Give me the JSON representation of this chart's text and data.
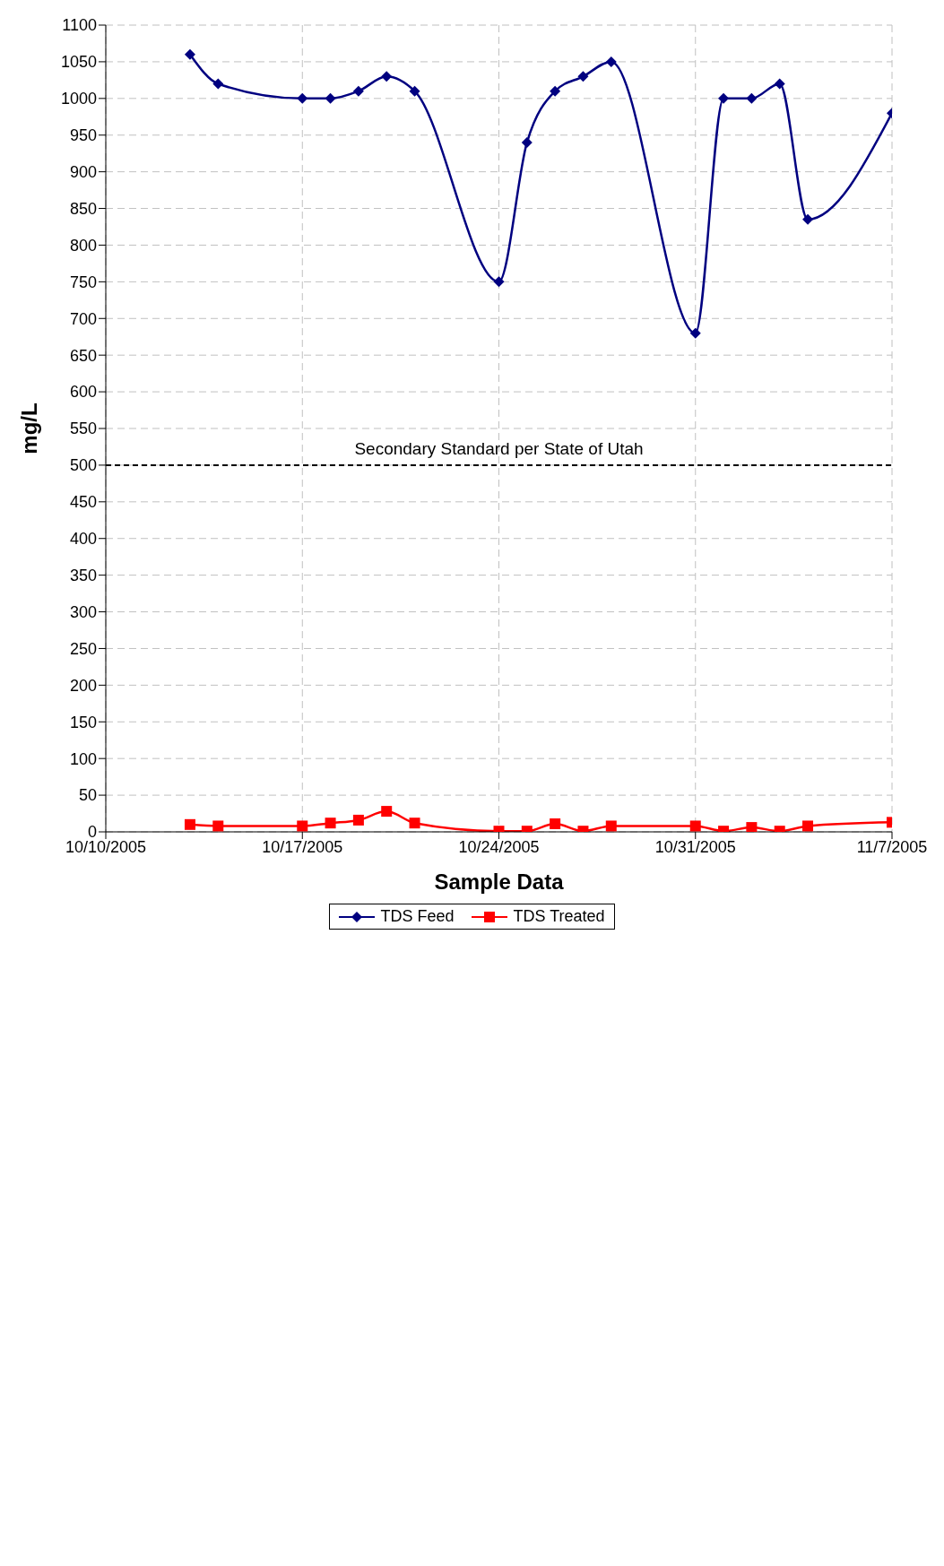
{
  "chart_data": {
    "type": "line",
    "xlabel": "Sample Data",
    "ylabel": "mg/L",
    "x": [
      "2005-10-13",
      "2005-10-14",
      "2005-10-17",
      "2005-10-18",
      "2005-10-19",
      "2005-10-20",
      "2005-10-21",
      "2005-10-24",
      "2005-10-25",
      "2005-10-26",
      "2005-10-27",
      "2005-10-28",
      "2005-10-31",
      "2005-11-01",
      "2005-11-02",
      "2005-11-03",
      "2005-11-04",
      "2005-11-07"
    ],
    "series": [
      {
        "name": "TDS Feed",
        "color": "#000080",
        "marker": "diamond",
        "values": [
          1060,
          1020,
          1000,
          1000,
          1010,
          1030,
          1010,
          750,
          940,
          1010,
          1030,
          1050,
          680,
          1000,
          1000,
          1020,
          835,
          980
        ]
      },
      {
        "name": "TDS Treated",
        "color": "#ff0000",
        "marker": "square",
        "values": [
          10,
          8,
          8,
          12,
          16,
          28,
          12,
          1,
          1,
          11,
          1,
          8,
          8,
          1,
          6,
          1,
          8,
          13
        ]
      }
    ],
    "xlim": [
      "2005-10-10",
      "2005-11-07"
    ],
    "xticks": [
      {
        "value": "2005-10-10",
        "label": "10/10/2005"
      },
      {
        "value": "2005-10-17",
        "label": "10/17/2005"
      },
      {
        "value": "2005-10-24",
        "label": "10/24/2005"
      },
      {
        "value": "2005-10-31",
        "label": "10/31/2005"
      },
      {
        "value": "2005-11-07",
        "label": "11/7/2005"
      }
    ],
    "ylim": [
      0,
      1100
    ],
    "yticks": [
      0,
      50,
      100,
      150,
      200,
      250,
      300,
      350,
      400,
      450,
      500,
      550,
      600,
      650,
      700,
      750,
      800,
      850,
      900,
      950,
      1000,
      1050,
      1100
    ],
    "ref_lines": [
      {
        "axis": "y",
        "value": 500,
        "label": "Secondary Standard per State of Utah",
        "color": "#000000",
        "line_style": "dashed"
      }
    ],
    "grid": true,
    "legend": "bottom",
    "line_style": "solid"
  }
}
